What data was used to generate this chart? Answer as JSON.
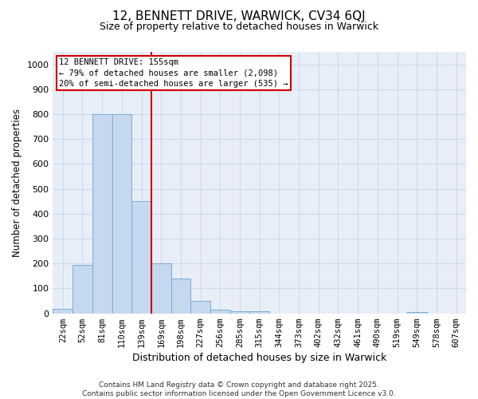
{
  "title_line1": "12, BENNETT DRIVE, WARWICK, CV34 6QJ",
  "title_line2": "Size of property relative to detached houses in Warwick",
  "xlabel": "Distribution of detached houses by size in Warwick",
  "ylabel": "Number of detached properties",
  "categories": [
    "22sqm",
    "52sqm",
    "81sqm",
    "110sqm",
    "139sqm",
    "169sqm",
    "198sqm",
    "227sqm",
    "256sqm",
    "285sqm",
    "315sqm",
    "344sqm",
    "373sqm",
    "402sqm",
    "432sqm",
    "461sqm",
    "490sqm",
    "519sqm",
    "549sqm",
    "578sqm",
    "607sqm"
  ],
  "values": [
    18,
    195,
    800,
    800,
    450,
    200,
    140,
    50,
    15,
    10,
    10,
    0,
    0,
    0,
    0,
    0,
    0,
    0,
    5,
    0,
    0
  ],
  "bar_color": "#c5d8ef",
  "bar_edge_color": "#7aadd4",
  "vline_color": "#cc0000",
  "annotation_line1": "12 BENNETT DRIVE: 155sqm",
  "annotation_line2": "← 79% of detached houses are smaller (2,098)",
  "annotation_line3": "20% of semi-detached houses are larger (535) →",
  "annotation_box_color": "#ffffff",
  "annotation_box_edge": "#cc0000",
  "ylim": [
    0,
    1050
  ],
  "yticks": [
    0,
    100,
    200,
    300,
    400,
    500,
    600,
    700,
    800,
    900,
    1000
  ],
  "grid_color": "#d0daea",
  "bg_color": "#ffffff",
  "plot_bg_color": "#e8eef8",
  "footer_text": "Contains HM Land Registry data © Crown copyright and database right 2025.\nContains public sector information licensed under the Open Government Licence v3.0.",
  "title_fontsize": 11,
  "subtitle_fontsize": 9,
  "ylabel_fontsize": 8.5,
  "xlabel_fontsize": 9,
  "tick_fontsize": 7.5,
  "footer_fontsize": 6.5
}
